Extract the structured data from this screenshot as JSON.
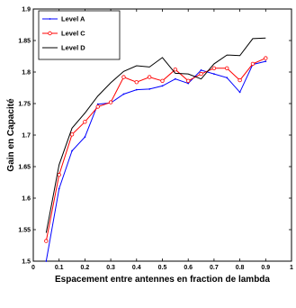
{
  "chart_data": {
    "type": "line",
    "title": "",
    "xlabel": "Espacement entre antennes en fraction de lambda",
    "ylabel": "Gain en Capacité",
    "xlim": [
      0,
      1
    ],
    "ylim": [
      1.5,
      1.9
    ],
    "xticks": [
      0,
      0.1,
      0.2,
      0.3,
      0.4,
      0.5,
      0.6,
      0.7,
      0.8,
      0.9,
      1
    ],
    "xtick_labels": [
      "0",
      "0.1",
      "0.2",
      "0.3",
      "0.4",
      "0.5",
      "0.6",
      "0.7",
      "0.8",
      "0.9",
      "1"
    ],
    "yticks": [
      1.5,
      1.55,
      1.6,
      1.65,
      1.7,
      1.75,
      1.8,
      1.85,
      1.9
    ],
    "ytick_labels": [
      "1.5",
      "1.55",
      "1.6",
      "1.65",
      "1.7",
      "1.75",
      "1.8",
      "1.85",
      "1.9"
    ],
    "legend_position": "top-left",
    "grid": false,
    "x": [
      0.05,
      0.1,
      0.15,
      0.2,
      0.25,
      0.3,
      0.35,
      0.4,
      0.45,
      0.5,
      0.55,
      0.6,
      0.65,
      0.7,
      0.75,
      0.8,
      0.85,
      0.9
    ],
    "series": [
      {
        "name": "Level A",
        "color": "#0000ff",
        "marker": "dot",
        "values": [
          1.5,
          1.615,
          1.675,
          1.697,
          1.749,
          1.751,
          1.765,
          1.772,
          1.773,
          1.778,
          1.789,
          1.782,
          1.803,
          1.797,
          1.791,
          1.768,
          1.812,
          1.817
        ]
      },
      {
        "name": "Level C",
        "color": "#ff0000",
        "marker": "circle",
        "values": [
          1.532,
          1.637,
          1.701,
          1.721,
          1.745,
          1.752,
          1.792,
          1.784,
          1.792,
          1.786,
          1.804,
          1.786,
          1.797,
          1.806,
          1.806,
          1.787,
          1.813,
          1.822
        ]
      },
      {
        "name": "Level D",
        "color": "#000000",
        "marker": "none",
        "values": [
          1.545,
          1.653,
          1.711,
          1.735,
          1.762,
          1.783,
          1.801,
          1.81,
          1.808,
          1.823,
          1.798,
          1.797,
          1.789,
          1.813,
          1.827,
          1.826,
          1.853,
          1.854
        ]
      }
    ]
  }
}
